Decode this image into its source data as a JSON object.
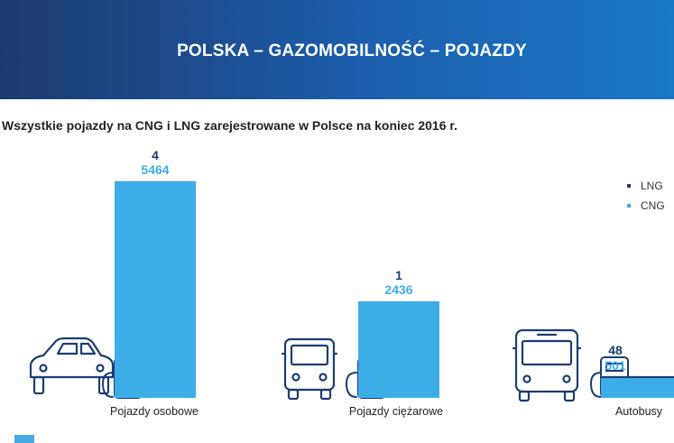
{
  "header": {
    "title": "POLSKA – GAZOMOBILNOŚĆ – POJAZDY"
  },
  "colors": {
    "lng": "#1b3d73",
    "cng": "#3dade8",
    "banner": "#1c5fae"
  },
  "chart_data": {
    "type": "bar",
    "title": "Wszystkie pojazdy na CNG i LNG zarejestrowane w Polsce na koniec 2016 r.",
    "categories": [
      "Pojazdy osobowe",
      "Pojazdy ciężarowe",
      "Autobusy"
    ],
    "series": [
      {
        "name": "LNG",
        "values": [
          4,
          1,
          48
        ]
      },
      {
        "name": "CNG",
        "values": [
          5464,
          2436,
          501
        ]
      }
    ],
    "legend": "top-right",
    "grid": false
  }
}
